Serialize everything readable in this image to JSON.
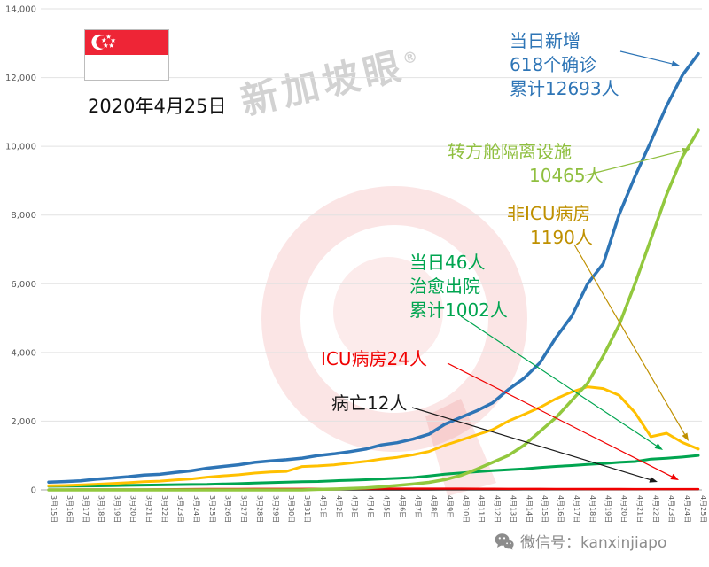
{
  "meta": {
    "date_label": "2020年4月25日",
    "watermark": "新加坡眼",
    "registered": "®",
    "wechat_label": "微信号：kanxinjiapo"
  },
  "annotations": {
    "confirmed": {
      "lines": [
        "当日新增",
        "618个确诊",
        "累计12693人"
      ],
      "color": "#2e75b6"
    },
    "isolation": {
      "lines": [
        "转方舱隔离设施",
        "10465人"
      ],
      "color": "#8fbf3f"
    },
    "non_icu": {
      "lines": [
        "非ICU病房",
        "1190人"
      ],
      "color": "#bf9000"
    },
    "discharged": {
      "lines": [
        "当日46人",
        "治愈出院",
        "累计1002人"
      ],
      "color": "#00a550"
    },
    "icu": {
      "lines": [
        "ICU病房24人"
      ],
      "color": "#f00000"
    },
    "deaths": {
      "lines": [
        "病亡12人"
      ],
      "color": "#1a1a1a"
    }
  },
  "chart_data": {
    "type": "line",
    "title": "",
    "xlabel": "",
    "ylabel": "",
    "ylim": [
      0,
      14000
    ],
    "yticks": [
      0,
      2000,
      4000,
      6000,
      8000,
      10000,
      12000,
      14000
    ],
    "grid": true,
    "legend_position": "annotations-on-plot",
    "x": [
      "3月15日",
      "3月16日",
      "3月17日",
      "3月18日",
      "3月19日",
      "3月20日",
      "3月21日",
      "3月22日",
      "3月23日",
      "3月24日",
      "3月25日",
      "3月26日",
      "3月27日",
      "3月28日",
      "3月29日",
      "3月30日",
      "3月31日",
      "4月1日",
      "4月2日",
      "4月3日",
      "4月4日",
      "4月5日",
      "4月6日",
      "4月7日",
      "4月8日",
      "4月9日",
      "4月10日",
      "4月11日",
      "4月12日",
      "4月13日",
      "4月14日",
      "4月15日",
      "4月16日",
      "4月17日",
      "4月18日",
      "4月19日",
      "4月20日",
      "4月21日",
      "4月22日",
      "4月23日",
      "4月24日",
      "4月25日"
    ],
    "series": [
      {
        "key": "confirmed",
        "name": "累计确诊",
        "color": "#2e75b6",
        "values": [
          226,
          243,
          266,
          313,
          345,
          385,
          432,
          455,
          509,
          558,
          631,
          683,
          732,
          802,
          844,
          879,
          926,
          1000,
          1049,
          1114,
          1189,
          1309,
          1375,
          1481,
          1623,
          1910,
          2108,
          2299,
          2532,
          2918,
          3252,
          3699,
          4427,
          5050,
          5992,
          6588,
          8014,
          9125,
          10141,
          11178,
          12075,
          12693
        ]
      },
      {
        "key": "isolation",
        "name": "转方舱隔离设施",
        "color": "#92c83e",
        "values": [
          0,
          0,
          0,
          0,
          0,
          0,
          0,
          0,
          0,
          0,
          0,
          0,
          0,
          0,
          0,
          0,
          0,
          15,
          25,
          40,
          60,
          90,
          130,
          170,
          220,
          300,
          420,
          600,
          800,
          1000,
          1300,
          1700,
          2100,
          2600,
          3100,
          3900,
          4800,
          6000,
          7300,
          8600,
          9700,
          10465
        ]
      },
      {
        "key": "non_icu",
        "name": "非ICU病房",
        "color": "#ffc000",
        "values": [
          120,
          130,
          145,
          165,
          185,
          210,
          240,
          255,
          290,
          320,
          370,
          410,
          440,
          490,
          520,
          540,
          680,
          700,
          730,
          780,
          830,
          900,
          950,
          1020,
          1120,
          1300,
          1450,
          1600,
          1750,
          2000,
          2200,
          2400,
          2650,
          2850,
          3000,
          2950,
          2750,
          2250,
          1550,
          1650,
          1380,
          1190
        ]
      },
      {
        "key": "discharged",
        "name": "累计治愈出院",
        "color": "#00a550",
        "values": [
          105,
          109,
          114,
          117,
          124,
          131,
          140,
          144,
          152,
          156,
          160,
          172,
          183,
          198,
          212,
          228,
          240,
          245,
          266,
          282,
          297,
          320,
          339,
          361,
          406,
          460,
          492,
          528,
          560,
          586,
          611,
          652,
          683,
          708,
          740,
          768,
          801,
          826,
          896,
          924,
          956,
          1002
        ]
      },
      {
        "key": "icu",
        "name": "ICU病房",
        "color": "#f00000",
        "values": [
          11,
          11,
          12,
          13,
          14,
          14,
          16,
          18,
          20,
          22,
          25,
          27,
          29,
          31,
          32,
          32,
          32,
          33,
          33,
          34,
          34,
          35,
          35,
          36,
          36,
          36,
          35,
          34,
          33,
          32,
          31,
          30,
          29,
          28,
          27,
          26,
          25,
          24,
          24,
          23,
          24,
          24
        ]
      },
      {
        "key": "deaths",
        "name": "病亡",
        "color": "#262626",
        "values": [
          0,
          0,
          0,
          0,
          0,
          0,
          2,
          2,
          2,
          2,
          2,
          2,
          2,
          3,
          3,
          3,
          3,
          4,
          4,
          5,
          6,
          6,
          6,
          6,
          6,
          7,
          7,
          8,
          8,
          9,
          10,
          10,
          10,
          11,
          11,
          11,
          11,
          11,
          12,
          12,
          12,
          12
        ]
      }
    ]
  }
}
